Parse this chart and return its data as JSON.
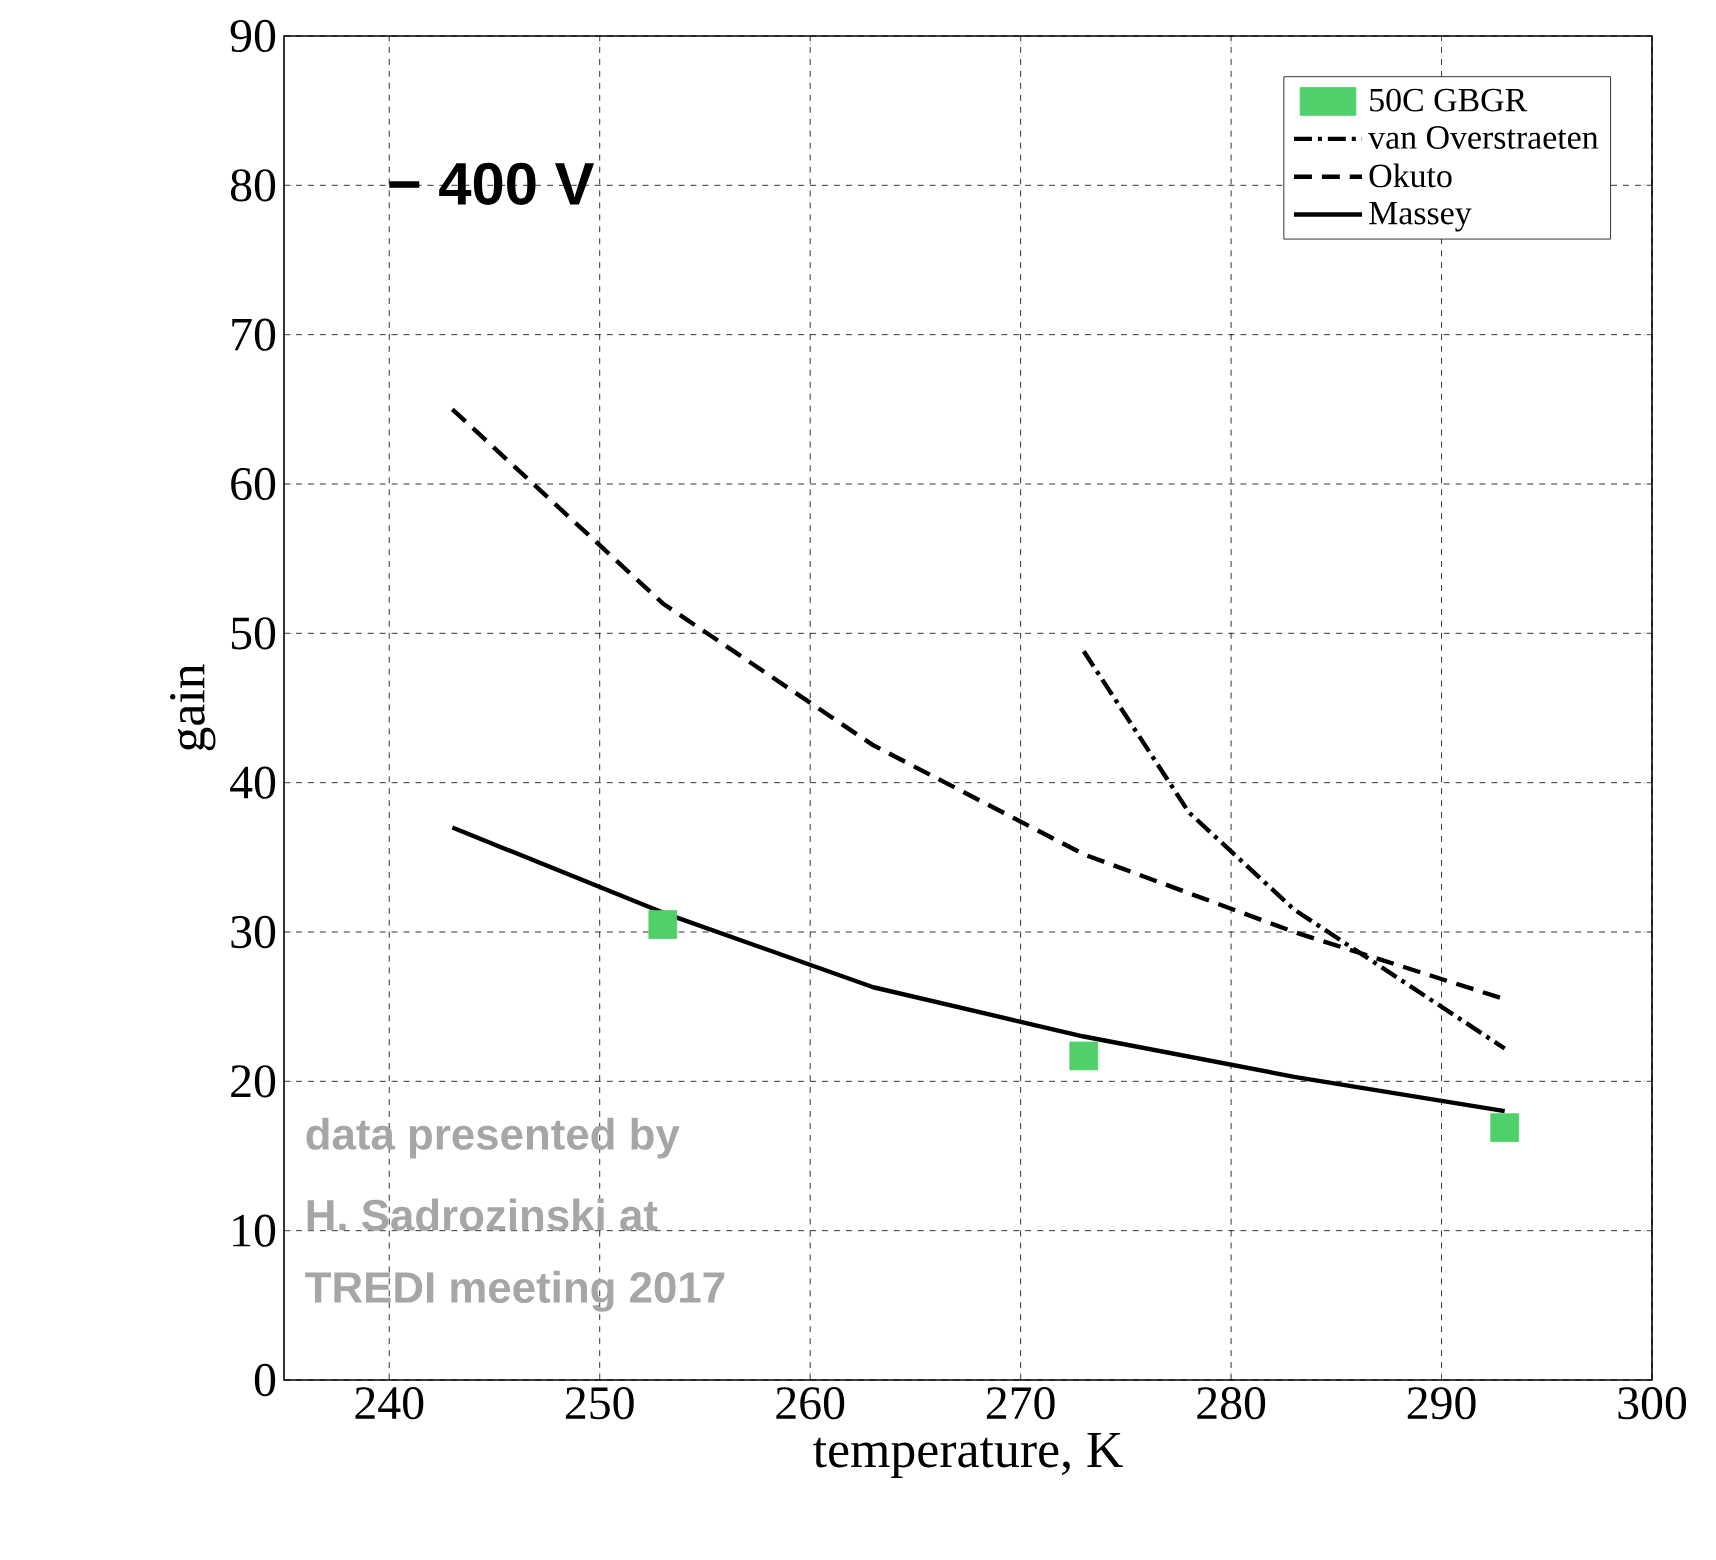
{
  "chart_data": {
    "type": "line",
    "xlabel": "temperature, K",
    "ylabel": "gain",
    "xlim": [
      235,
      300
    ],
    "xticks": [
      240,
      250,
      260,
      270,
      280,
      290,
      300
    ],
    "ylim": [
      0,
      90
    ],
    "yticks": [
      0,
      10,
      20,
      30,
      40,
      50,
      60,
      70,
      80,
      90
    ],
    "grid": true,
    "legend": "top right",
    "annotations": [
      "− 400 V",
      "data presented by",
      "H. Sadrozinski at",
      "TREDI meeting 2017"
    ],
    "series": [
      {
        "name": "50C GBGR",
        "type": "scatter",
        "marker": "square",
        "color": "#4fd06a",
        "x": [
          253,
          273,
          293
        ],
        "values": [
          30.5,
          21.7,
          16.9
        ]
      },
      {
        "name": "van Overstraeten",
        "line_style": "dashdot",
        "color": "#000000",
        "x": [
          273,
          278,
          283,
          293
        ],
        "values": [
          48.8,
          38,
          31.5,
          22.2
        ]
      },
      {
        "name": "Okuto",
        "line_style": "dashed",
        "color": "#000000",
        "x": [
          243,
          253,
          263,
          273,
          283,
          293
        ],
        "values": [
          65,
          52,
          42.5,
          35.2,
          30,
          25.5
        ]
      },
      {
        "name": "Massey",
        "line_style": "solid",
        "color": "#000000",
        "x": [
          243,
          253,
          263,
          273,
          283,
          293
        ],
        "values": [
          37,
          31.3,
          26.3,
          23,
          20.3,
          18
        ]
      }
    ]
  }
}
